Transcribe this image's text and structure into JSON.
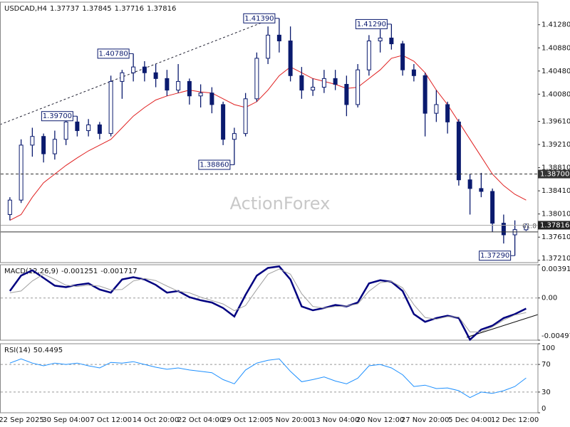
{
  "chart_data": [
    {
      "type": "candlestick",
      "title": "USDCAD,H4",
      "color": "#0a1a6e",
      "categories": [
        null,
        "22 Sep 2025",
        null,
        null,
        null,
        "30 Sep 04:00",
        null,
        null,
        null,
        "7 Oct 12:00",
        null,
        null,
        null,
        "14 Oct 20:00",
        null,
        null,
        null,
        "22 Oct 04:00",
        null,
        null,
        null,
        "29 Oct 12:00",
        null,
        null,
        null,
        "5 Nov 20:00",
        null,
        null,
        null,
        "13 Nov 04:00",
        null,
        null,
        null,
        "20 Nov 12:00",
        null,
        null,
        null,
        "27 Nov 20:00",
        null,
        null,
        null,
        "5 Dec 04:00",
        null,
        null,
        null,
        "12 Dec 12:00",
        null
      ],
      "open": [
        1.38,
        1.3825,
        1.392,
        1.3935,
        1.3905,
        1.393,
        1.396,
        1.3945,
        1.3955,
        1.394,
        1.403,
        1.4045,
        1.4055,
        1.4045,
        1.4035,
        1.4015,
        1.403,
        1.4005,
        1.401,
        1.399,
        1.393,
        1.394,
        1.4,
        1.407,
        1.411,
        1.41,
        1.404,
        1.4015,
        1.402,
        1.4035,
        1.4025,
        1.399,
        1.405,
        1.41,
        1.4105,
        1.4095,
        1.405,
        1.404,
        1.3975,
        1.399,
        1.396,
        1.386,
        1.3845,
        1.384,
        1.3785,
        1.3765,
        1.37737
      ],
      "high": [
        1.383,
        1.393,
        1.395,
        1.394,
        1.3945,
        1.3975,
        1.397,
        1.3965,
        1.396,
        1.404,
        1.405,
        1.4078,
        1.4065,
        1.406,
        1.405,
        1.406,
        1.4035,
        1.4025,
        1.402,
        1.3995,
        1.395,
        1.401,
        1.408,
        1.4125,
        1.4139,
        1.4125,
        1.4055,
        1.4035,
        1.405,
        1.405,
        1.404,
        1.406,
        1.411,
        1.412,
        1.4129,
        1.41,
        1.406,
        1.4045,
        1.4015,
        1.3995,
        1.3965,
        1.387,
        1.3872,
        1.3845,
        1.38,
        1.379,
        1.37845
      ],
      "low": [
        1.379,
        1.382,
        1.39,
        1.389,
        1.3895,
        1.392,
        1.3935,
        1.3935,
        1.393,
        1.3935,
        1.4,
        1.403,
        1.403,
        1.402,
        1.4005,
        1.401,
        1.399,
        1.3985,
        1.3975,
        1.392,
        1.3886,
        1.3935,
        1.3995,
        1.406,
        1.408,
        1.403,
        1.4,
        1.4005,
        1.401,
        1.4015,
        1.397,
        1.3985,
        1.404,
        1.408,
        1.4085,
        1.404,
        1.403,
        1.3935,
        1.396,
        1.394,
        1.385,
        1.38,
        1.383,
        1.377,
        1.375,
        1.3729,
        1.37716
      ],
      "close": [
        1.3825,
        1.392,
        1.3935,
        1.3905,
        1.393,
        1.396,
        1.3945,
        1.3955,
        1.394,
        1.403,
        1.4045,
        1.4055,
        1.4045,
        1.4035,
        1.4015,
        1.403,
        1.4005,
        1.401,
        1.399,
        1.393,
        1.394,
        1.4,
        1.407,
        1.411,
        1.41,
        1.404,
        1.4015,
        1.402,
        1.4035,
        1.4025,
        1.399,
        1.405,
        1.41,
        1.4105,
        1.4095,
        1.405,
        1.404,
        1.3975,
        1.399,
        1.396,
        1.386,
        1.3845,
        1.384,
        1.3785,
        1.3765,
        1.3774,
        1.37816
      ],
      "series": [
        {
          "name": "MA",
          "color": "#e02020",
          "values": [
            1.379,
            1.38,
            1.383,
            1.3855,
            1.387,
            1.3885,
            1.3898,
            1.391,
            1.392,
            1.393,
            1.395,
            1.397,
            1.3985,
            1.3998,
            1.4005,
            1.401,
            1.4015,
            1.4012,
            1.401,
            1.4,
            1.399,
            1.3985,
            1.3995,
            1.4015,
            1.404,
            1.4055,
            1.4045,
            1.4035,
            1.403,
            1.4025,
            1.4018,
            1.402,
            1.4035,
            1.405,
            1.407,
            1.4075,
            1.4065,
            1.4045,
            1.4015,
            1.399,
            1.396,
            1.393,
            1.39,
            1.387,
            1.385,
            1.3835,
            1.3825
          ]
        }
      ],
      "ylim": [
        1.3717,
        1.4167
      ],
      "yticks": [
        {
          "value": 1.4128,
          "label": "1.41280"
        },
        {
          "value": 1.4088,
          "label": "1.40880"
        },
        {
          "value": 1.4048,
          "label": "1.40480"
        },
        {
          "value": 1.4008,
          "label": "1.40080"
        },
        {
          "value": 1.3961,
          "label": "1.39610"
        },
        {
          "value": 1.3921,
          "label": "1.39210"
        },
        {
          "value": 1.3881,
          "label": "1.38810"
        },
        {
          "value": 1.3841,
          "label": "1.38410"
        },
        {
          "value": 1.3801,
          "label": "1.38010"
        },
        {
          "value": 1.3761,
          "label": "1.37610"
        },
        {
          "value": 1.3721,
          "label": "1.37210"
        }
      ],
      "grid": false,
      "annotations": [
        {
          "value": 1.4139,
          "label": "1.41390"
        },
        {
          "value": 1.4078,
          "label": "1.40780"
        },
        {
          "value": 1.3886,
          "label": "1.38860"
        },
        {
          "value": 1.397,
          "label": "1.39700"
        },
        {
          "value": 1.4129,
          "label": "1.41290"
        },
        {
          "value": 1.3729,
          "label": "1.37290"
        }
      ],
      "levels": [
        {
          "value": 1.387,
          "label": "1.38700",
          "style": "dashed"
        },
        {
          "value": 1.377,
          "label": "61.8",
          "style": "solid"
        }
      ],
      "watermark": "ActionForex"
    },
    {
      "type": "line",
      "title": "MACD(12,26,9)",
      "series": [
        {
          "name": "MACD",
          "color": "#000080",
          "values": [
            0.00082,
            0.00263,
            0.00326,
            0.00236,
            0.00145,
            0.00127,
            0.00154,
            0.00172,
            0.001,
            0.00063,
            0.00218,
            0.00245,
            0.00218,
            0.00154,
            0.00063,
            0.00082,
            9e-05,
            -0.00027,
            -0.00054,
            -0.00118,
            -0.00218,
            0.00036,
            0.00263,
            0.00354,
            0.00372,
            0.00218,
            -0.001,
            -0.00145,
            -0.00118,
            -0.00082,
            -0.001,
            -0.00054,
            0.00172,
            0.00209,
            0.0019,
            0.00082,
            -0.0019,
            -0.00281,
            -0.00236,
            -0.00209,
            -0.00236,
            -0.0049,
            -0.00372,
            -0.00326,
            -0.00236,
            -0.0019,
            -0.001251
          ]
        },
        {
          "name": "Signal",
          "color": "#a0a0a0",
          "values": [
            0.0006,
            0.00082,
            0.002,
            0.0028,
            0.0022,
            0.0015,
            0.00135,
            0.0015,
            0.0014,
            0.00095,
            0.001,
            0.002,
            0.0023,
            0.00205,
            0.0014,
            0.0008,
            0.0006,
            0.0001,
            -0.0003,
            -0.0007,
            -0.0015,
            -0.0009,
            0.001,
            0.0028,
            0.0034,
            0.0028,
            0.0005,
            -0.001,
            -0.0012,
            -0.001,
            -0.00095,
            -0.0007,
            0.0008,
            0.0018,
            0.00195,
            0.0012,
            -0.0008,
            -0.0023,
            -0.0025,
            -0.0022,
            -0.00225,
            -0.004,
            -0.004,
            -0.0034,
            -0.0026,
            -0.002,
            -0.001717
          ]
        }
      ],
      "ylim": [
        -0.00497,
        0.003914
      ],
      "yticks": [
        0.003914,
        {
          "value": 0,
          "label": "0.00"
        },
        {
          "value": -0.00497,
          "label": "-0.004970"
        }
      ],
      "grid": true
    },
    {
      "type": "line",
      "title": "RSI(14)",
      "series": [
        {
          "name": "RSI",
          "color": "#1e90ff",
          "values": [
            72,
            78,
            72,
            68,
            72,
            70,
            72,
            68,
            65,
            73,
            72,
            74,
            70,
            66,
            63,
            65,
            62,
            60,
            58,
            48,
            42,
            62,
            72,
            76,
            78,
            60,
            45,
            48,
            52,
            46,
            42,
            50,
            68,
            70,
            65,
            55,
            38,
            40,
            35,
            36,
            32,
            22,
            30,
            28,
            32,
            38,
            50.4495
          ]
        }
      ],
      "ylim": [
        0,
        100
      ],
      "yticks": [
        0,
        30,
        70,
        100
      ],
      "grid": true
    }
  ]
}
